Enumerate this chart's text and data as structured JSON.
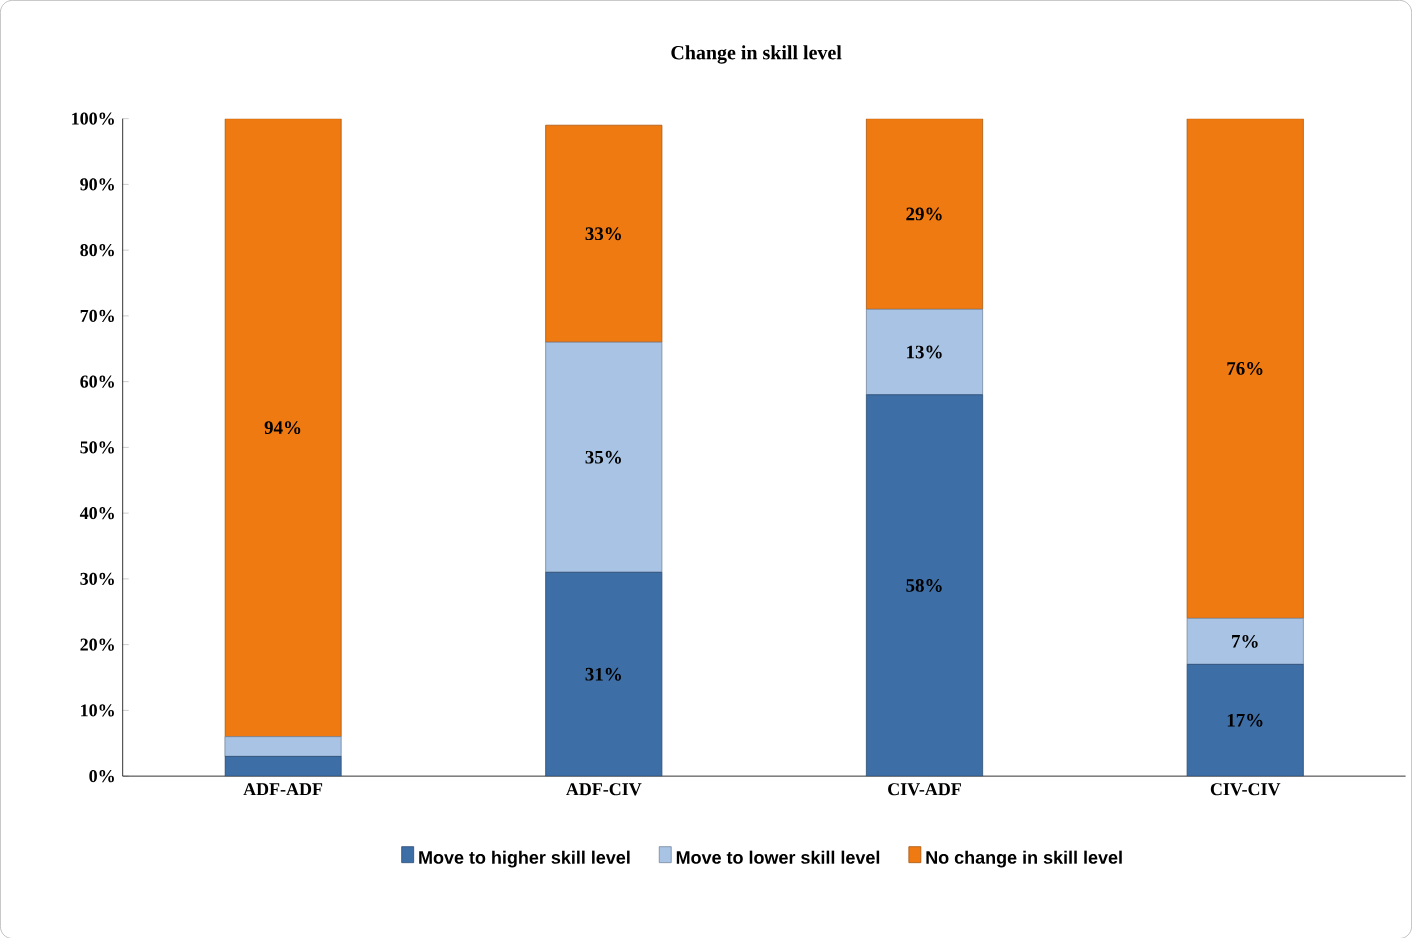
{
  "chart_data": {
    "type": "bar",
    "stacked": true,
    "title": "Change in skill level",
    "categories": [
      "ADF-ADF",
      "ADF-CIV",
      "CIV-ADF",
      "CIV-CIV"
    ],
    "series": [
      {
        "name": "Move to higher skill level",
        "color": "#3e6ea6",
        "values": [
          3,
          31,
          58,
          17
        ],
        "value_labels": [
          null,
          "31%",
          "58%",
          "17%"
        ]
      },
      {
        "name": "Move to lower skill level",
        "color": "#a8c3e3",
        "values": [
          3,
          35,
          13,
          7
        ],
        "value_labels": [
          null,
          "35%",
          "13%",
          "7%"
        ]
      },
      {
        "name": "No change in skill level",
        "color": "#f07a12",
        "values": [
          94,
          33,
          29,
          76
        ],
        "value_labels": [
          "94%",
          "33%",
          "29%",
          "76%"
        ]
      }
    ],
    "ylim": [
      0,
      100
    ],
    "yticks": [
      {
        "value": 0,
        "label": "0%"
      },
      {
        "value": 10,
        "label": "10%"
      },
      {
        "value": 20,
        "label": "20%"
      },
      {
        "value": 30,
        "label": "30%"
      },
      {
        "value": 40,
        "label": "40%"
      },
      {
        "value": 50,
        "label": "50%"
      },
      {
        "value": 60,
        "label": "60%"
      },
      {
        "value": 70,
        "label": "70%"
      },
      {
        "value": 80,
        "label": "80%"
      },
      {
        "value": 90,
        "label": "90%"
      },
      {
        "value": 100,
        "label": "100%"
      }
    ],
    "legend": "bottom"
  }
}
